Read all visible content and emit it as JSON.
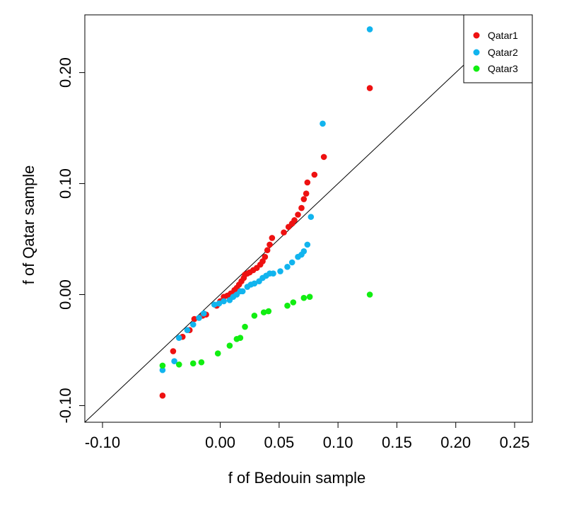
{
  "chart_data": {
    "type": "scatter",
    "xlabel": "f of Bedouin sample",
    "ylabel": "f of Qatar sample",
    "xlim": [
      -0.115,
      0.265
    ],
    "ylim": [
      -0.115,
      0.252
    ],
    "x_ticks": [
      -0.1,
      0.0,
      0.05,
      0.1,
      0.15,
      0.2,
      0.25
    ],
    "x_tick_labels": [
      "-0.10",
      "0.00",
      "0.05",
      "0.10",
      "0.15",
      "0.20",
      "0.25"
    ],
    "y_ticks": [
      -0.1,
      0.0,
      0.1,
      0.2
    ],
    "y_tick_labels": [
      "-0.10",
      "0.00",
      "0.10",
      "0.20"
    ],
    "reference_line": "y = x",
    "grid": false,
    "legend_position": "top-right",
    "series": [
      {
        "name": "Qatar1",
        "color": "#ee1111",
        "points": [
          [
            -0.049,
            -0.091
          ],
          [
            -0.04,
            -0.051
          ],
          [
            -0.032,
            -0.038
          ],
          [
            -0.026,
            -0.032
          ],
          [
            -0.022,
            -0.022
          ],
          [
            -0.015,
            -0.019
          ],
          [
            -0.012,
            -0.018
          ],
          [
            -0.003,
            -0.01
          ],
          [
            0.0,
            -0.006
          ],
          [
            0.003,
            -0.002
          ],
          [
            0.006,
            -0.001
          ],
          [
            0.009,
            0.001
          ],
          [
            0.012,
            0.004
          ],
          [
            0.014,
            0.006
          ],
          [
            0.016,
            0.009
          ],
          [
            0.018,
            0.012
          ],
          [
            0.02,
            0.015
          ],
          [
            0.021,
            0.018
          ],
          [
            0.023,
            0.019
          ],
          [
            0.025,
            0.02
          ],
          [
            0.028,
            0.022
          ],
          [
            0.031,
            0.024
          ],
          [
            0.034,
            0.027
          ],
          [
            0.036,
            0.03
          ],
          [
            0.038,
            0.034
          ],
          [
            0.04,
            0.04
          ],
          [
            0.042,
            0.045
          ],
          [
            0.044,
            0.051
          ],
          [
            0.054,
            0.056
          ],
          [
            0.058,
            0.061
          ],
          [
            0.061,
            0.064
          ],
          [
            0.063,
            0.067
          ],
          [
            0.066,
            0.072
          ],
          [
            0.069,
            0.078
          ],
          [
            0.071,
            0.086
          ],
          [
            0.073,
            0.091
          ],
          [
            0.074,
            0.101
          ],
          [
            0.08,
            0.108
          ],
          [
            0.088,
            0.124
          ],
          [
            0.127,
            0.186
          ]
        ]
      },
      {
        "name": "Qatar2",
        "color": "#11b4ee",
        "points": [
          [
            -0.049,
            -0.068
          ],
          [
            -0.039,
            -0.06
          ],
          [
            -0.035,
            -0.039
          ],
          [
            -0.028,
            -0.032
          ],
          [
            -0.023,
            -0.027
          ],
          [
            -0.018,
            -0.021
          ],
          [
            -0.014,
            -0.017
          ],
          [
            -0.005,
            -0.009
          ],
          [
            -0.001,
            -0.008
          ],
          [
            0.003,
            -0.006
          ],
          [
            0.008,
            -0.005
          ],
          [
            0.011,
            -0.002
          ],
          [
            0.014,
            0.0
          ],
          [
            0.017,
            0.003
          ],
          [
            0.019,
            0.003
          ],
          [
            0.023,
            0.007
          ],
          [
            0.026,
            0.009
          ],
          [
            0.029,
            0.01
          ],
          [
            0.033,
            0.012
          ],
          [
            0.036,
            0.015
          ],
          [
            0.039,
            0.017
          ],
          [
            0.042,
            0.019
          ],
          [
            0.045,
            0.019
          ],
          [
            0.051,
            0.021
          ],
          [
            0.057,
            0.025
          ],
          [
            0.061,
            0.029
          ],
          [
            0.066,
            0.034
          ],
          [
            0.069,
            0.036
          ],
          [
            0.071,
            0.039
          ],
          [
            0.074,
            0.045
          ],
          [
            0.077,
            0.07
          ],
          [
            0.087,
            0.154
          ],
          [
            0.127,
            0.239
          ]
        ]
      },
      {
        "name": "Qatar3",
        "color": "#11ee11",
        "points": [
          [
            -0.049,
            -0.064
          ],
          [
            -0.035,
            -0.063
          ],
          [
            -0.023,
            -0.062
          ],
          [
            -0.016,
            -0.061
          ],
          [
            -0.002,
            -0.053
          ],
          [
            0.008,
            -0.046
          ],
          [
            0.014,
            -0.04
          ],
          [
            0.017,
            -0.039
          ],
          [
            0.021,
            -0.029
          ],
          [
            0.029,
            -0.019
          ],
          [
            0.037,
            -0.016
          ],
          [
            0.041,
            -0.015
          ],
          [
            0.057,
            -0.01
          ],
          [
            0.062,
            -0.007
          ],
          [
            0.071,
            -0.003
          ],
          [
            0.076,
            -0.002
          ],
          [
            0.127,
            0.0
          ]
        ]
      }
    ]
  }
}
